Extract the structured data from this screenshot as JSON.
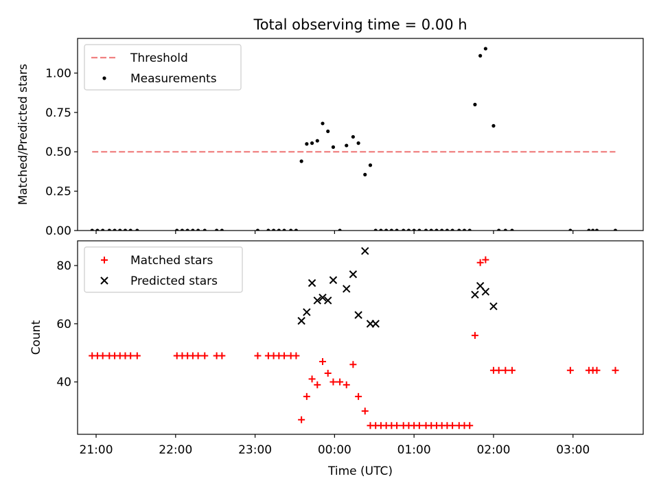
{
  "title": "Total observing time = 0.00 h",
  "chart_data": [
    {
      "type": "scatter",
      "ylabel": "Matched/Predicted stars",
      "xlabel": "",
      "x_range": [
        "20:46",
        "03:53"
      ],
      "ylim": [
        0,
        1.22
      ],
      "yticks": [
        0,
        0.25,
        0.5,
        0.75,
        1.0
      ],
      "ytick_labels": [
        "0.00",
        "0.25",
        "0.50",
        "0.75",
        "1.00"
      ],
      "xticks": [
        "21:00",
        "22:00",
        "23:00",
        "00:00",
        "01:00",
        "02:00",
        "03:00"
      ],
      "legend_position": "upper left",
      "grid": false,
      "series": [
        {
          "name": "Threshold",
          "style": "dashed-line",
          "color": "#f08080",
          "x": [
            "20:57",
            "03:32"
          ],
          "y": [
            0.5,
            0.5
          ]
        },
        {
          "name": "Measurements",
          "style": "dot",
          "color": "#000000",
          "x": [
            "20:57",
            "21:01",
            "21:05",
            "21:10",
            "21:14",
            "21:18",
            "21:22",
            "21:26",
            "21:31",
            "22:01",
            "22:05",
            "22:09",
            "22:13",
            "22:17",
            "22:22",
            "22:31",
            "22:35",
            "23:02",
            "23:10",
            "23:14",
            "23:18",
            "23:22",
            "23:27",
            "23:31",
            "23:35",
            "23:39",
            "23:43",
            "23:47",
            "23:51",
            "23:55",
            "23:59",
            "00:04",
            "00:09",
            "00:14",
            "00:18",
            "00:23",
            "00:27",
            "00:31",
            "00:35",
            "00:39",
            "00:43",
            "00:47",
            "00:52",
            "00:56",
            "01:00",
            "01:04",
            "01:09",
            "01:13",
            "01:17",
            "01:21",
            "01:25",
            "01:29",
            "01:34",
            "01:38",
            "01:42",
            "01:46",
            "01:50",
            "01:54",
            "02:00",
            "02:04",
            "02:09",
            "02:14",
            "02:58",
            "03:12",
            "03:15",
            "03:18",
            "03:32"
          ],
          "y": [
            0,
            0,
            0,
            0,
            0,
            0,
            0,
            0,
            0,
            0,
            0,
            0,
            0,
            0,
            0,
            0,
            0,
            0,
            0,
            0,
            0,
            0,
            0,
            0,
            0.44,
            0.55,
            0.555,
            0.57,
            0.68,
            0.63,
            0.53,
            0.0,
            0.54,
            0.595,
            0.555,
            0.355,
            0.415,
            0,
            0,
            0,
            0,
            0,
            0,
            0,
            0,
            0,
            0,
            0,
            0,
            0,
            0,
            0,
            0,
            0,
            0,
            0.8,
            1.11,
            1.155,
            0.665,
            0,
            0,
            0,
            0,
            0,
            0,
            0,
            0
          ]
        }
      ]
    },
    {
      "type": "scatter",
      "ylabel": "Count",
      "xlabel": "Time (UTC)",
      "x_range": [
        "20:46",
        "03:53"
      ],
      "ylim": [
        22,
        88.5
      ],
      "yticks": [
        40,
        60,
        80
      ],
      "ytick_labels": [
        "40",
        "60",
        "80"
      ],
      "xticks": [
        "21:00",
        "22:00",
        "23:00",
        "00:00",
        "01:00",
        "02:00",
        "03:00"
      ],
      "xtick_labels": [
        "21:00",
        "22:00",
        "23:00",
        "00:00",
        "01:00",
        "02:00",
        "03:00"
      ],
      "legend_position": "upper left",
      "grid": false,
      "series": [
        {
          "name": "Matched stars",
          "marker": "plus",
          "color": "#ff0000",
          "x": [
            "20:57",
            "21:01",
            "21:05",
            "21:10",
            "21:14",
            "21:18",
            "21:22",
            "21:26",
            "21:31",
            "22:01",
            "22:05",
            "22:09",
            "22:13",
            "22:17",
            "22:22",
            "22:31",
            "22:35",
            "23:02",
            "23:10",
            "23:14",
            "23:18",
            "23:22",
            "23:27",
            "23:31",
            "23:35",
            "23:39",
            "23:43",
            "23:47",
            "23:51",
            "23:55",
            "23:59",
            "00:04",
            "00:09",
            "00:14",
            "00:18",
            "00:23",
            "00:27",
            "00:31",
            "00:35",
            "00:39",
            "00:43",
            "00:47",
            "00:52",
            "00:56",
            "01:00",
            "01:04",
            "01:09",
            "01:13",
            "01:17",
            "01:21",
            "01:25",
            "01:29",
            "01:34",
            "01:38",
            "01:42",
            "01:46",
            "01:50",
            "01:54",
            "02:00",
            "02:04",
            "02:09",
            "02:14",
            "02:58",
            "03:12",
            "03:15",
            "03:18",
            "03:32"
          ],
          "y": [
            49,
            49,
            49,
            49,
            49,
            49,
            49,
            49,
            49,
            49,
            49,
            49,
            49,
            49,
            49,
            49,
            49,
            49,
            49,
            49,
            49,
            49,
            49,
            49,
            27,
            35,
            41,
            39,
            47,
            43,
            40,
            40,
            39,
            46,
            35,
            30,
            25,
            25,
            25,
            25,
            25,
            25,
            25,
            25,
            25,
            25,
            25,
            25,
            25,
            25,
            25,
            25,
            25,
            25,
            25,
            56,
            81,
            82,
            44,
            44,
            44,
            44,
            44,
            44,
            44,
            44,
            44
          ]
        },
        {
          "name": "Predicted stars",
          "marker": "x",
          "color": "#000000",
          "x": [
            "23:35",
            "23:39",
            "23:43",
            "23:47",
            "23:51",
            "23:55",
            "23:59",
            "00:09",
            "00:14",
            "00:18",
            "00:23",
            "00:27",
            "00:31",
            "01:46",
            "01:50",
            "01:54",
            "02:00"
          ],
          "y": [
            61,
            64,
            74,
            68,
            69,
            68,
            75,
            72,
            77,
            63,
            85,
            60,
            60,
            70,
            73,
            71,
            66
          ]
        }
      ]
    }
  ]
}
